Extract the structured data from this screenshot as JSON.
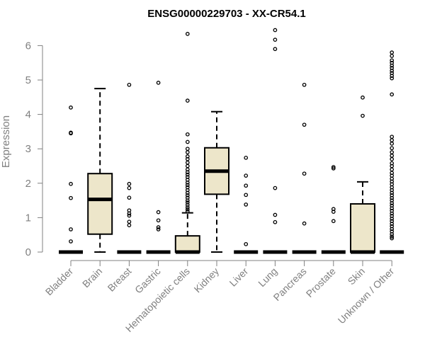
{
  "chart_data": {
    "type": "box",
    "title": "ENSG00000229703 - XX-CR54.1",
    "xlabel": "",
    "ylabel": "Expression",
    "ylim": [
      0,
      6.6
    ],
    "yticks": [
      0,
      1,
      2,
      3,
      4,
      5,
      6
    ],
    "box_color": "#ede6ca",
    "categories": [
      "Bladder",
      "Brain",
      "Breast",
      "Gastric",
      "Hematopoietic cells",
      "Kidney",
      "Liver",
      "Lung",
      "Pancreas",
      "Prostate",
      "Skin",
      "Unknown / Other"
    ],
    "boxes": [
      {
        "category": "Bladder",
        "min": 0,
        "q1": 0,
        "median": 0,
        "q3": 0,
        "max": 0,
        "outliers": [
          4.2,
          3.47,
          3.45,
          1.98,
          1.57,
          0.66,
          0.31
        ]
      },
      {
        "category": "Brain",
        "min": 0,
        "q1": 0.52,
        "median": 1.53,
        "q3": 2.28,
        "max": 4.75,
        "outliers": []
      },
      {
        "category": "Breast",
        "min": 0,
        "q1": 0,
        "median": 0,
        "q3": 0,
        "max": 0,
        "outliers": [
          4.86,
          1.98,
          1.86,
          1.58,
          1.21,
          1.12,
          1.06,
          0.88,
          0.78
        ]
      },
      {
        "category": "Gastric",
        "min": 0,
        "q1": 0,
        "median": 0,
        "q3": 0,
        "max": 0,
        "outliers": [
          4.92,
          1.16,
          0.92,
          0.72,
          0.66
        ]
      },
      {
        "category": "Hematopoietic cells",
        "min": 0,
        "q1": 0,
        "median": 0,
        "q3": 0.47,
        "max": 1.14,
        "outliers": [
          6.34,
          4.4,
          3.42,
          3.2,
          3.0,
          2.9,
          2.78,
          2.7,
          2.6,
          2.5,
          2.4,
          2.32,
          2.25,
          2.18,
          2.1,
          2.02,
          1.95,
          1.88,
          1.8,
          1.72,
          1.65,
          1.58,
          1.5,
          1.44,
          1.37,
          1.3,
          1.24,
          1.18
        ]
      },
      {
        "category": "Kidney",
        "min": 0,
        "q1": 1.68,
        "median": 2.35,
        "q3": 3.03,
        "max": 4.08,
        "outliers": []
      },
      {
        "category": "Liver",
        "min": 0,
        "q1": 0,
        "median": 0,
        "q3": 0,
        "max": 0,
        "outliers": [
          2.74,
          2.22,
          1.93,
          1.66,
          1.38,
          0.23
        ]
      },
      {
        "category": "Lung",
        "min": 0,
        "q1": 0,
        "median": 0,
        "q3": 0,
        "max": 0,
        "outliers": [
          6.45,
          6.17,
          5.9,
          1.86,
          1.08,
          0.87
        ]
      },
      {
        "category": "Pancreas",
        "min": 0,
        "q1": 0,
        "median": 0,
        "q3": 0,
        "max": 0,
        "outliers": [
          4.86,
          3.7,
          2.28,
          0.83
        ]
      },
      {
        "category": "Prostate",
        "min": 0,
        "q1": 0,
        "median": 0,
        "q3": 0,
        "max": 0,
        "outliers": [
          2.47,
          2.43,
          1.25,
          1.17,
          0.9
        ]
      },
      {
        "category": "Skin",
        "min": 0,
        "q1": 0,
        "median": 0,
        "q3": 1.4,
        "max": 2.04,
        "outliers": [
          4.49,
          3.96
        ]
      },
      {
        "category": "Unknown / Other",
        "min": 0,
        "q1": 0,
        "median": 0,
        "q3": 0,
        "max": 0,
        "outliers": [
          5.8,
          5.7,
          5.57,
          5.5,
          5.42,
          5.35,
          5.27,
          5.2,
          5.12,
          5.05,
          4.58,
          3.35,
          3.25,
          3.15,
          3.02,
          2.9,
          2.8,
          2.7,
          2.58,
          2.5,
          2.4,
          2.3,
          2.22,
          2.13,
          2.05,
          1.97,
          1.88,
          1.8,
          1.72,
          1.65,
          1.57,
          1.5,
          1.42,
          1.35,
          1.27,
          1.2,
          1.12,
          1.05,
          0.97,
          0.9,
          0.82,
          0.75,
          0.67,
          0.6,
          0.52,
          0.45,
          0.4
        ]
      }
    ]
  }
}
